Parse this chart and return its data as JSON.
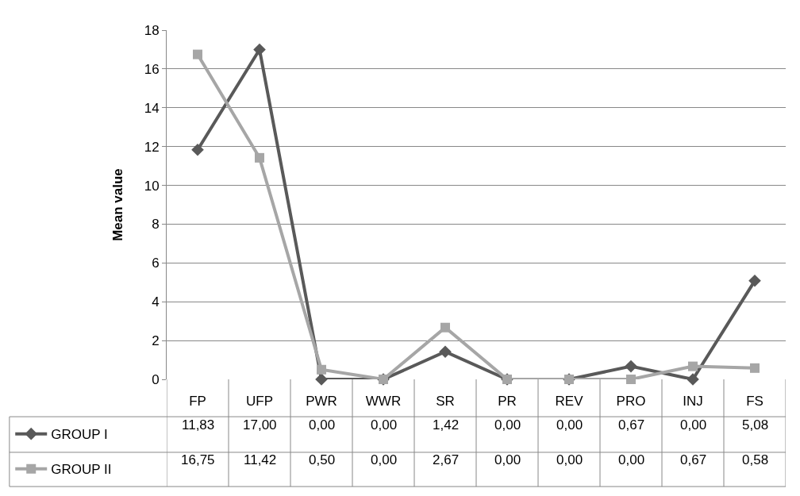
{
  "chart_data": {
    "type": "line",
    "ylabel": "Mean value",
    "categories": [
      "FP",
      "UFP",
      "PWR",
      "WWR",
      "SR",
      "PR",
      "REV",
      "PRO",
      "INJ",
      "FS"
    ],
    "series": [
      {
        "name": "GROUP I",
        "color": "#595959",
        "marker": "diamond",
        "values": [
          11.83,
          17.0,
          0.0,
          0.0,
          1.42,
          0.0,
          0.0,
          0.67,
          0.0,
          5.08
        ],
        "value_labels": [
          "11,83",
          "17,00",
          "0,00",
          "0,00",
          "1,42",
          "0,00",
          "0,00",
          "0,67",
          "0,00",
          "5,08"
        ]
      },
      {
        "name": "GROUP II",
        "color": "#a6a6a6",
        "marker": "square",
        "values": [
          16.75,
          11.42,
          0.5,
          0.0,
          2.67,
          0.0,
          0.0,
          0.0,
          0.67,
          0.58
        ],
        "value_labels": [
          "16,75",
          "11,42",
          "0,50",
          "0,00",
          "2,67",
          "0,00",
          "0,00",
          "0,00",
          "0,67",
          "0,58"
        ]
      }
    ],
    "ylim": [
      0,
      18
    ],
    "yticks": [
      0,
      2,
      4,
      6,
      8,
      10,
      12,
      14,
      16,
      18
    ],
    "grid": "y",
    "legend": "bottom left",
    "line_style": "solid"
  }
}
